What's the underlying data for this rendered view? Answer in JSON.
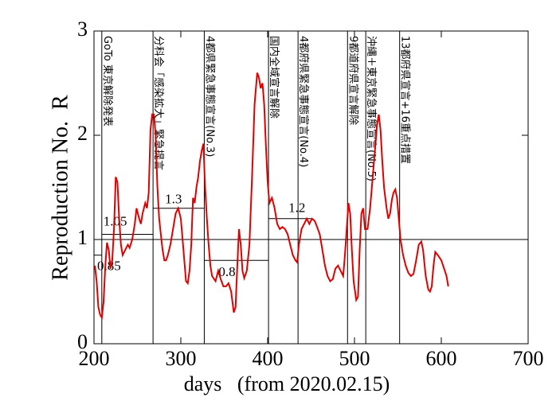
{
  "chart_data": {
    "type": "line",
    "x_label": "days   (from 2020.02.15)",
    "y_label": "Reproduction No.  R",
    "xlim": [
      200,
      700
    ],
    "xticks": [
      200,
      300,
      400,
      500,
      600,
      700
    ],
    "ylim": [
      0,
      3
    ],
    "yticks": [
      0,
      1,
      2,
      3
    ],
    "reference_line": 1,
    "series": [
      {
        "color": "#e00000",
        "x": [
          201,
          203,
          205,
          207,
          209,
          211,
          213,
          215,
          217,
          219,
          221,
          223,
          225,
          227,
          229,
          231,
          233,
          236,
          239,
          241,
          244,
          247,
          249,
          252,
          254,
          256,
          259,
          261,
          263,
          265,
          267,
          269,
          271,
          273,
          275,
          277,
          279,
          281,
          283,
          285,
          288,
          291,
          294,
          297,
          300,
          303,
          306,
          308,
          310,
          312,
          314,
          316,
          318,
          320,
          322,
          324,
          326,
          328,
          330,
          332,
          334,
          336,
          340,
          343,
          346,
          349,
          352,
          355,
          358,
          361,
          363,
          365,
          367,
          369,
          371,
          373,
          376,
          379,
          382,
          385,
          388,
          390,
          392,
          394,
          396,
          398,
          400,
          402,
          405,
          408,
          411,
          414,
          417,
          420,
          423,
          426,
          429,
          432,
          434,
          436,
          439,
          442,
          445,
          448,
          451,
          454,
          457,
          460,
          463,
          466,
          469,
          472,
          475,
          478,
          481,
          484,
          487,
          489,
          491,
          493,
          495,
          497,
          499,
          502,
          504,
          506,
          508,
          510,
          512,
          515,
          518,
          521,
          524,
          526,
          528,
          530,
          532,
          534,
          537,
          539,
          541,
          543,
          545,
          547,
          549,
          551,
          553,
          556,
          559,
          562,
          565,
          568,
          571,
          574,
          577,
          579,
          582,
          585,
          587,
          589,
          591,
          593,
          596,
          600,
          604,
          606,
          608
        ],
        "values": [
          0.75,
          0.6,
          0.35,
          0.28,
          0.25,
          0.4,
          0.75,
          0.97,
          0.9,
          0.72,
          0.8,
          1.1,
          1.6,
          1.55,
          1.2,
          0.95,
          0.85,
          0.9,
          0.95,
          0.92,
          1.0,
          1.15,
          1.3,
          1.2,
          1.15,
          1.25,
          1.35,
          1.3,
          1.45,
          2.05,
          2.2,
          2.2,
          2.0,
          1.5,
          1.2,
          1.05,
          0.9,
          0.8,
          0.8,
          0.85,
          0.95,
          1.1,
          1.25,
          1.3,
          1.2,
          0.9,
          0.6,
          0.58,
          0.7,
          0.95,
          1.4,
          1.35,
          1.5,
          1.6,
          1.75,
          1.85,
          1.92,
          1.5,
          1.2,
          0.95,
          0.75,
          0.65,
          0.6,
          0.7,
          0.62,
          0.55,
          0.55,
          0.58,
          0.5,
          0.3,
          0.35,
          0.75,
          1.1,
          0.95,
          0.7,
          0.63,
          0.7,
          0.95,
          1.6,
          2.3,
          2.6,
          2.55,
          2.45,
          2.5,
          2.3,
          1.9,
          1.55,
          1.35,
          1.4,
          1.3,
          1.15,
          1.1,
          1.12,
          1.1,
          1.05,
          0.95,
          0.85,
          0.8,
          0.78,
          0.95,
          1.1,
          1.15,
          1.2,
          1.15,
          1.2,
          1.18,
          1.12,
          1.05,
          0.9,
          0.75,
          0.65,
          0.6,
          0.62,
          0.72,
          0.75,
          0.7,
          0.65,
          0.85,
          1.1,
          1.35,
          1.25,
          0.9,
          0.6,
          0.42,
          0.45,
          0.9,
          1.25,
          1.3,
          1.1,
          1.1,
          1.3,
          1.6,
          1.9,
          2.1,
          2.2,
          2.05,
          1.75,
          1.5,
          1.3,
          1.2,
          1.25,
          1.38,
          1.45,
          1.48,
          1.4,
          1.2,
          1.0,
          0.85,
          0.75,
          0.68,
          0.65,
          0.67,
          0.8,
          0.95,
          0.98,
          0.9,
          0.65,
          0.52,
          0.5,
          0.55,
          0.75,
          0.88,
          0.85,
          0.8,
          0.7,
          0.65,
          0.55
        ]
      }
    ],
    "levels": [
      {
        "start": 200,
        "end": 209,
        "value": 0.85
      },
      {
        "start": 209,
        "end": 268,
        "value": 1.05
      },
      {
        "start": 268,
        "end": 327,
        "value": 1.3
      },
      {
        "start": 327,
        "end": 401,
        "value": 0.8
      },
      {
        "start": 401,
        "end": 450,
        "value": 1.2
      }
    ],
    "events": [
      {
        "day": 209,
        "label": "GoTo 東京解除発表"
      },
      {
        "day": 268,
        "label": "分科会「感染拡大」緊急提言"
      },
      {
        "day": 327,
        "label": "4都県緊急事態宣言(No.3)"
      },
      {
        "day": 401,
        "label": "国内全域宣言解除"
      },
      {
        "day": 435,
        "label": "4都府県緊急事態宣言(No.4)"
      },
      {
        "day": 492,
        "label": "9都道府県宣言解除"
      },
      {
        "day": 513,
        "label": "沖縄＋東京緊急事態宣言(No.5)"
      },
      {
        "day": 552,
        "label": "13都府県宣言+16重点措置"
      }
    ]
  }
}
